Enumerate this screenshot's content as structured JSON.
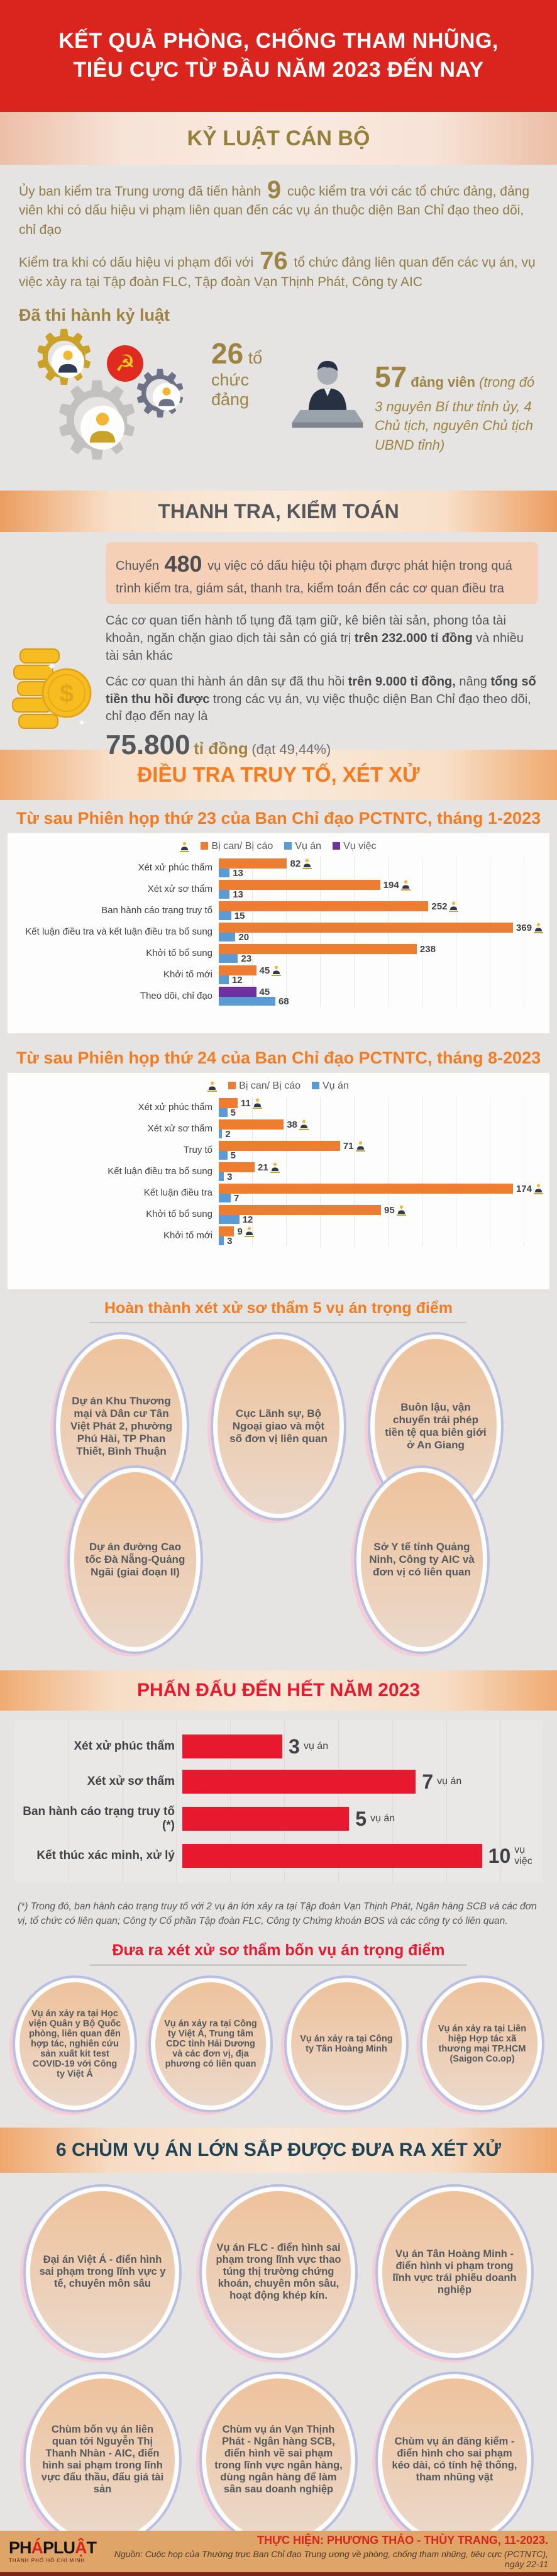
{
  "header": {
    "line1": "KẾT QUẢ PHÒNG, CHỐNG THAM NHŨNG,",
    "line2": "TIÊU CỰC TỪ ĐẦU NĂM 2023 ĐẾN NAY",
    "bg_color": "#d9251d"
  },
  "kyluat": {
    "band_title": "KỶ LUẬT CÁN BỘ",
    "p1a": "Ủy ban kiểm tra Trung ương đã tiến hành",
    "p1n": "9",
    "p1b": "cuộc kiểm tra với các tổ chức đảng, đảng viên khi có dấu hiệu vi phạm liên quan đến các vụ án thuộc diện Ban Chỉ đạo theo dõi, chỉ đạo",
    "p2a": "Kiểm tra khi có dấu hiệu vi phạm đối với",
    "p2n": "76",
    "p2b": "tổ chức đảng liên quan đến các vụ án, vụ việc xảy ra tại Tập đoàn FLC, Tập đoàn Vạn Thịnh Phát, Công ty AIC",
    "subheading": "Đã thi hành kỷ luật",
    "stat1_number": "26",
    "stat1_label": "tổ chức đảng",
    "stat2_number": "57",
    "stat2_label": "đảng viên",
    "stat2_note": "(trong đó 3 nguyên Bí thư tỉnh ủy, 4 Chủ tịch, nguyên Chủ tịch UBND tỉnh)"
  },
  "thanhtra": {
    "band_title": "THANH TRA, KIỂM TOÁN",
    "boxa": "Chuyển",
    "boxn": "480",
    "boxb": "vụ việc có dấu hiệu tội phạm được phát hiện trong quá trình kiểm tra, giám sát, thanh tra, kiểm toán đến các cơ quan điều tra",
    "p1a": "Các cơ quan tiến hành tố tụng đã tạm giữ, kê biên tài sản, phong tỏa tài khoản, ngăn chặn giao dịch tài sản có giá trị",
    "p1b": "trên 232.000 tỉ đồng",
    "p1c": "và nhiều tài sản khác",
    "p2a": "Các cơ quan thi hành án dân sự đã thu hồi",
    "p2b": "trên 9.000 tỉ đồng,",
    "p2c": "nâng",
    "p2d": "tổng số tiền thu hồi được",
    "p2e": "trong các vụ án, vụ việc thuộc diện Ban Chỉ đạo theo dõi, chỉ đạo đến nay là",
    "total_number": "75.800",
    "total_unit": "tỉ đồng",
    "total_note": "(đạt 49,44%)"
  },
  "dieutra_band_title": "ĐIỀU TRA TRUY TỐ, XÉT XỬ",
  "chart_data": [
    {
      "type": "bar",
      "orientation": "horizontal",
      "title": "Từ sau Phiên họp thứ 23 của Ban Chỉ đạo PCTNTC, tháng 1-2023",
      "legend": [
        "Bị can/ Bị cáo",
        "Vụ án",
        "Vụ việc"
      ],
      "legend_position": "top",
      "grid": true,
      "colors": {
        "Bị can/ Bị cáo": "#ed7d31",
        "Vụ án": "#5b9bd5",
        "Vụ việc": "#7030a0"
      },
      "xmax": 390,
      "rows": [
        {
          "label": "Xét xử phúc thẩm",
          "bars": [
            {
              "series": "Bị can/ Bị cáo",
              "value": 82,
              "person": true
            },
            {
              "series": "Vụ án",
              "value": 13
            }
          ]
        },
        {
          "label": "Xét xử sơ thẩm",
          "bars": [
            {
              "series": "Bị can/ Bị cáo",
              "value": 194,
              "person": true
            },
            {
              "series": "Vụ án",
              "value": 13
            }
          ]
        },
        {
          "label": "Ban hành cáo trạng truy tố",
          "bars": [
            {
              "series": "Bị can/ Bị cáo",
              "value": 252,
              "person": true
            },
            {
              "series": "Vụ án",
              "value": 15
            }
          ]
        },
        {
          "label": "Kết luận điều tra và kết luận điều tra bổ sung",
          "bars": [
            {
              "series": "Bị can/ Bị cáo",
              "value": 369,
              "person": true
            },
            {
              "series": "Vụ án",
              "value": 20
            }
          ]
        },
        {
          "label": "Khởi tố bổ sung",
          "bars": [
            {
              "series": "Bị can/ Bị cáo",
              "value": 238
            },
            {
              "series": "Vụ án",
              "value": 23
            }
          ]
        },
        {
          "label": "Khởi tố mới",
          "bars": [
            {
              "series": "Bị can/ Bị cáo",
              "value": 45,
              "person": true
            },
            {
              "series": "Vụ án",
              "value": 12
            }
          ]
        },
        {
          "label": "Theo dõi, chỉ đạo",
          "bars": [
            {
              "series": "Vụ việc",
              "value": 45
            },
            {
              "series": "Vụ án",
              "value": 68
            }
          ]
        }
      ]
    },
    {
      "type": "bar",
      "orientation": "horizontal",
      "title": "Từ sau Phiên họp thứ 24 của Ban Chỉ đạo PCTNTC, tháng 8-2023",
      "legend": [
        "Bị can/ Bị cáo",
        "Vụ án"
      ],
      "legend_position": "top",
      "grid": true,
      "colors": {
        "Bị can/ Bị cáo": "#ed7d31",
        "Vụ án": "#5b9bd5"
      },
      "xmax": 190,
      "rows": [
        {
          "label": "Xét xử phúc thẩm",
          "bars": [
            {
              "series": "Bị can/ Bị cáo",
              "value": 11,
              "person": true
            },
            {
              "series": "Vụ án",
              "value": 5
            }
          ]
        },
        {
          "label": "Xét xử sơ thẩm",
          "bars": [
            {
              "series": "Bị can/ Bị cáo",
              "value": 38,
              "person": true
            },
            {
              "series": "Vụ án",
              "value": 2
            }
          ]
        },
        {
          "label": "Truy tố",
          "bars": [
            {
              "series": "Bị can/ Bị cáo",
              "value": 71,
              "person": true
            },
            {
              "series": "Vụ án",
              "value": 5
            }
          ]
        },
        {
          "label": "Kết luận điều tra bổ sung",
          "bars": [
            {
              "series": "Bị can/ Bị cáo",
              "value": 21,
              "person": true
            },
            {
              "series": "Vụ án",
              "value": 3
            }
          ]
        },
        {
          "label": "Kết luận điều tra",
          "bars": [
            {
              "series": "Bị can/ Bị cáo",
              "value": 174,
              "person": true
            },
            {
              "series": "Vụ án",
              "value": 7
            }
          ]
        },
        {
          "label": "Khởi tố bổ sung",
          "bars": [
            {
              "series": "Bị can/ Bị cáo",
              "value": 95,
              "person": true
            },
            {
              "series": "Vụ án",
              "value": 12
            }
          ]
        },
        {
          "label": "Khởi tố mới",
          "bars": [
            {
              "series": "Bị can/ Bị cáo",
              "value": 9,
              "person": true
            },
            {
              "series": "Vụ án",
              "value": 3
            }
          ]
        }
      ]
    },
    {
      "type": "bar",
      "orientation": "horizontal",
      "title": "PHẤN ĐẤU ĐẾN HẾT NĂM 2023",
      "bar_color": "#e8192f",
      "grid": true,
      "xmax": 10.8,
      "rows": [
        {
          "label": "Xét xử phúc thẩm",
          "value": 3,
          "unit": "vụ án"
        },
        {
          "label": "Xét xử sơ thẩm",
          "value": 7,
          "unit": "vụ án"
        },
        {
          "label": "Ban hành cáo trạng truy tố (*)",
          "value": 5,
          "unit": "vụ án"
        },
        {
          "label": "Kết thúc xác minh, xử lý",
          "value": 10,
          "unit": "vụ việc"
        }
      ]
    }
  ],
  "ovals_group1": {
    "title": "Hoàn thành xét xử sơ thẩm 5 vụ án trọng điểm",
    "items": [
      "Dự án Khu Thương mại và Dân cư Tân Việt Phát 2, phường Phú Hài, TP Phan Thiết, Bình Thuận",
      "Cục Lãnh sự, Bộ Ngoại giao và một số đơn vị liên quan",
      "Buôn lậu, vận chuyển trái phép tiền tệ qua biên giới ở An Giang",
      "Dự án đường Cao tốc Đà Nẵng-Quảng Ngãi (giai đoạn II)",
      "Sở Y tế tỉnh Quảng Ninh, Công ty AIC và đơn vị có liên quan"
    ]
  },
  "goal_band_title": "PHẤN ĐẤU ĐẾN HẾT NĂM 2023",
  "footnote": "(*) Trong đó, ban hành cáo trạng truy tố với 2 vụ án lớn xảy ra tại Tập đoàn Vạn Thịnh Phát, Ngân hàng SCB và các đơn vị, tổ chức có liên quan; Công ty Cổ phần Tập đoàn FLC, Công ty Chứng khoán BOS và các công ty có liên quan.",
  "ovals_group2": {
    "title": "Đưa ra xét xử sơ thẩm bốn vụ án trọng điểm",
    "items": [
      "Vụ án xảy ra tại Học viện Quân y Bộ Quốc phòng, liên quan đến hợp tác, nghiên cứu sản xuất kit test COVID-19 với Công ty Việt Á",
      "Vụ án xảy ra tại Công ty Việt Á, Trung tâm CDC tỉnh Hải Dương và các đơn vị, địa phương có liên quan",
      "Vụ án xảy ra tại Công ty Tân Hoàng Minh",
      "Vụ án xảy ra tại Liên hiệp Hợp tác xã thương mại TP.HCM (Saigon Co.op)"
    ]
  },
  "ovals_group3": {
    "band_title": "6 CHÙM VỤ ÁN LỚN SẮP ĐƯỢC ĐƯA RA XÉT XỬ",
    "items": [
      "Đại án Việt Á - điển hình sai phạm trong lĩnh vực y tế, chuyên môn sâu",
      "Vụ án FLC - điển hình sai phạm trong lĩnh vực thao túng thị trường chứng khoán, chuyên môn sâu, hoạt động khép kín.",
      "Vụ án Tân Hoàng Minh - điển hình vi phạm trong lĩnh vực trái phiếu doanh nghiệp",
      "Chùm bốn vụ án liên quan tới Nguyễn Thị Thanh Nhàn - AIC, điển hình sai phạm trong lĩnh vực đấu thầu, đấu giá tài sản",
      "Chùm vụ án Vạn Thịnh Phát - Ngân hàng SCB, điển hình về sai phạm trong lĩnh vực ngân hàng, dùng ngân hàng để làm sân sau doanh nghiệp",
      "Chùm vụ án đăng kiểm - điển hình cho sai phạm kéo dài, có tính hệ thống, tham nhũng vặt"
    ]
  },
  "footer": {
    "logo_parts": {
      "a": "PH",
      "b": "Á",
      "c": "PLU",
      "d": "Ậ",
      "e": "T"
    },
    "logo_sub": "THÀNH PHỐ HỒ CHÍ MINH",
    "credit": "THỰC HIỆN:  PHƯƠNG THẢO - THÙY TRANG, 11-2023.",
    "source": "Nguồn: Cuộc họp của Thường trực Ban Chỉ đạo Trung ương về phòng, chống tham nhũng, tiêu cực (PCTNTC), ngày 22-11"
  }
}
